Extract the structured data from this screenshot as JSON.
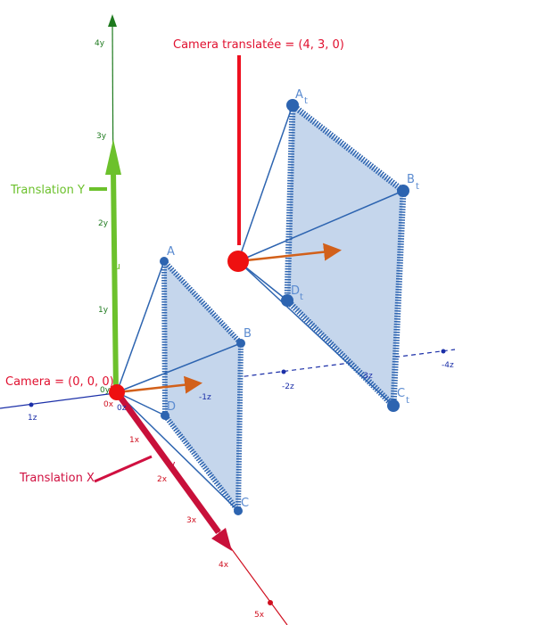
{
  "annotations": {
    "camera_translated": "Camera translatée = (4, 3, 0)",
    "translation_y": "Translation Y",
    "camera": "Camera = (0, 0, 0)",
    "translation_x": "Translation X"
  },
  "vectors": {
    "u": "u",
    "v": "v"
  },
  "points": {
    "A": "A",
    "B": "B",
    "C": "C",
    "D": "D",
    "At": {
      "label": "A",
      "sub": "t"
    },
    "Bt": {
      "label": "B",
      "sub": "t"
    },
    "Ct": {
      "label": "C",
      "sub": "t"
    },
    "Dt": {
      "label": "D",
      "sub": "t"
    }
  },
  "axes": {
    "y": [
      "0y",
      "1y",
      "2y",
      "3y",
      "4y"
    ],
    "x": [
      "0x",
      "1x",
      "2x",
      "3x",
      "4x",
      "5x"
    ],
    "z": [
      "0z",
      "1z",
      "-1z",
      "-2z",
      "-3z",
      "-4z"
    ]
  }
}
